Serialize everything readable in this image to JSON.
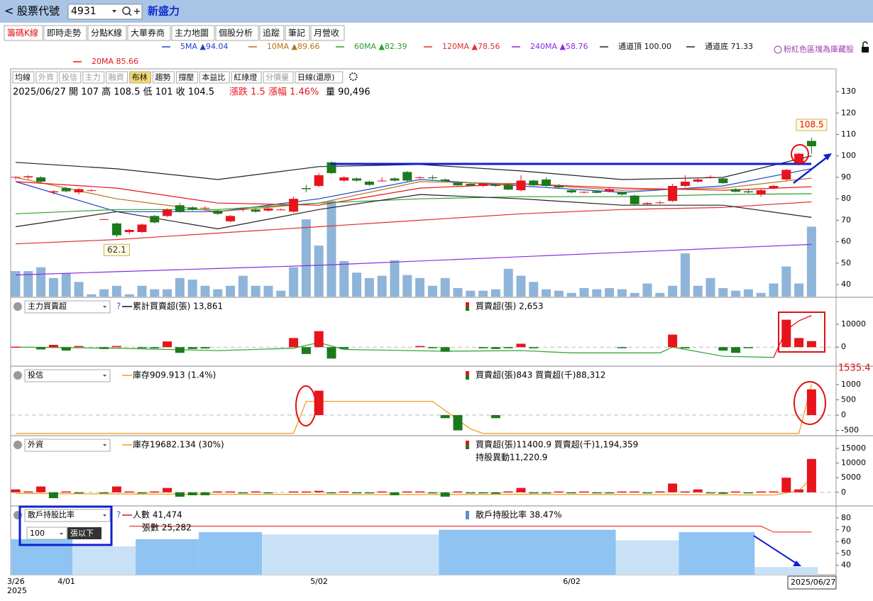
{
  "header": {
    "back": "<",
    "label": "股票代號",
    "code": "4931",
    "name": "新盛力"
  },
  "tabs": [
    "籌碼K線",
    "即時走勢",
    "分點K線",
    "大單券商",
    "主力地圖",
    "個股分析",
    "追蹤",
    "筆記",
    "月營收"
  ],
  "notice": "粉紅色區塊為庫藏股",
  "toolbar": [
    "均線",
    "外資",
    "投信",
    "主力",
    "融資",
    "布林",
    "趨勢",
    "撐壓",
    "本益比",
    "紅綠燈",
    "分價量",
    "日線(還原)"
  ],
  "info": {
    "ohlc": "2025/06/27 開 107 高 108.5 低 101 收 104.5",
    "change": "漲跌 1.5  漲幅 1.46%",
    "volume": "量 90,496"
  },
  "x_labels": [
    {
      "index": 0,
      "label": "3/26"
    },
    {
      "index": 4,
      "label": "4/01"
    },
    {
      "index": 24,
      "label": "5/02"
    },
    {
      "index": 44,
      "label": "6/02"
    }
  ],
  "year_label": "2025",
  "last_date": "2025/06/27",
  "chart_data": [
    {
      "type": "candlestick",
      "ylim": [
        34.4,
        133
      ],
      "yticks": [
        40,
        50,
        60,
        70,
        80,
        90,
        100,
        110,
        120,
        130
      ],
      "open": [
        90,
        90,
        90,
        83,
        85,
        83,
        84,
        70.5,
        68.5,
        64.5,
        64.5,
        72,
        72,
        77,
        76,
        75.5,
        74.5,
        69.5,
        75,
        75,
        74.5,
        75,
        74,
        85,
        86,
        97,
        88.5,
        89.5,
        88,
        88.5,
        89.5,
        92.5,
        90,
        90,
        89,
        87.5,
        87,
        86,
        86.5,
        86.5,
        84,
        88.5,
        89,
        86,
        84,
        83,
        83.5,
        83.5,
        83,
        81.5,
        77.5,
        78.2,
        79,
        86,
        88,
        90,
        89.5,
        84.5,
        83.5,
        82,
        85,
        89,
        96,
        107
      ],
      "high": [
        90.5,
        91,
        90.5,
        84,
        85.5,
        85,
        84.5,
        70.6,
        69,
        66,
        68.5,
        72.5,
        75.5,
        78,
        76.5,
        76.5,
        75,
        72.5,
        75.5,
        75.5,
        76,
        75.5,
        81,
        86.5,
        92,
        97.5,
        90.5,
        90,
        88.5,
        90,
        90,
        93,
        90.5,
        91,
        89.5,
        88,
        87.5,
        87.5,
        87,
        87,
        91,
        89,
        90,
        87,
        84.5,
        83.5,
        84,
        85,
        83.5,
        82,
        78.5,
        79,
        87,
        91,
        89.5,
        91,
        90,
        85,
        84.5,
        84.5,
        86.5,
        94,
        101.5,
        108.5
      ],
      "low": [
        89,
        89,
        87.5,
        82,
        83,
        82,
        83.5,
        70.4,
        62.1,
        63.5,
        64,
        68.5,
        71.5,
        73.5,
        74.5,
        75,
        72.5,
        69,
        74,
        73.5,
        74,
        74.5,
        73.5,
        83,
        85.5,
        91.5,
        88,
        88,
        86,
        88,
        88,
        88,
        89.5,
        89,
        88,
        86,
        86,
        85.5,
        85.5,
        84,
        83.5,
        86,
        85.5,
        85,
        82.5,
        82.5,
        82.5,
        83,
        81.5,
        77,
        77,
        77.5,
        78.5,
        85.5,
        87.5,
        89.5,
        87,
        83,
        82.5,
        81,
        84.5,
        88.5,
        95.5,
        101
      ],
      "close": [
        90.2,
        90.5,
        88,
        83.5,
        83.5,
        84.5,
        84,
        70.5,
        63,
        65.5,
        68,
        69,
        75,
        74,
        75,
        75.8,
        73,
        72,
        75.3,
        74,
        75.5,
        75,
        80,
        84.5,
        91,
        92,
        90,
        88.5,
        86.5,
        88.5,
        88.5,
        88.5,
        90,
        89.6,
        88.2,
        86.3,
        86.2,
        87,
        86,
        84.3,
        88.5,
        86.3,
        86,
        85.3,
        83,
        83.2,
        82.8,
        84.5,
        82,
        77.5,
        78,
        78.3,
        86,
        88,
        89,
        90.2,
        87.3,
        83.3,
        83,
        84,
        86,
        93.5,
        101,
        104.5
      ],
      "up_color": "#e8141b",
      "down_color": "#1b7a1b",
      "volume": [
        33000,
        33000,
        38000,
        24000,
        30000,
        19000,
        3000,
        9500,
        14000,
        3000,
        14000,
        9500,
        9500,
        24000,
        22000,
        14000,
        9500,
        14000,
        27000,
        14000,
        14000,
        7600,
        38000,
        100000,
        66000,
        124000,
        46000,
        31000,
        24000,
        27000,
        47000,
        28000,
        24000,
        14000,
        24000,
        11000,
        7600,
        7600,
        9500,
        36000,
        27000,
        19000,
        9500,
        7600,
        4800,
        11000,
        9500,
        11000,
        9500,
        4800,
        17000,
        4800,
        14000,
        56000,
        14000,
        24000,
        11000,
        7600,
        9500,
        4800,
        17000,
        39000,
        17000,
        90496
      ],
      "volume_color": "#8fb4d9",
      "lines_x": [
        0,
        8,
        16,
        24,
        32,
        40,
        48,
        56,
        63
      ],
      "lines": [
        {
          "name": "5MA",
          "label": "▲94.04",
          "color": "#2244cc",
          "values": [
            88,
            74,
            74,
            80,
            89,
            86,
            83,
            86,
            94.04
          ]
        },
        {
          "name": "10MA",
          "label": "▲89.66",
          "color": "#b8741a",
          "values": [
            90,
            80,
            74,
            78,
            88,
            87,
            84,
            85,
            89.66
          ]
        },
        {
          "name": "20MA",
          "label": "85.66",
          "color": "#e8141b",
          "values": [
            88,
            85,
            78,
            77,
            85,
            87,
            85,
            84,
            85.66
          ]
        },
        {
          "name": "60MA",
          "label": "▲82.39",
          "color": "#2aa02a",
          "values": [
            73,
            75,
            75,
            78,
            80,
            81,
            81,
            82,
            82.39
          ]
        },
        {
          "name": "120MA",
          "label": "▲78.56",
          "color": "#e03030",
          "values": [
            59,
            61,
            64,
            67,
            70,
            73,
            75,
            76,
            78.56
          ]
        },
        {
          "name": "240MA",
          "label": "▲58.76",
          "color": "#8a2be2",
          "values": [
            44.5,
            46,
            47.5,
            49,
            51,
            53,
            55,
            57,
            58.76
          ]
        },
        {
          "name": "通道頂",
          "label": "100.00",
          "color": "#222222",
          "values": [
            97,
            94,
            89,
            95,
            96,
            93,
            89,
            90,
            100
          ]
        },
        {
          "name": "通道底",
          "label": "71.33",
          "color": "#222222",
          "values": [
            67,
            74,
            66,
            75,
            82,
            80,
            77,
            77,
            71.33
          ]
        }
      ],
      "annotations": [
        {
          "index": 8,
          "field": "low",
          "text": "62.1"
        },
        {
          "index": 63,
          "field": "high",
          "text": "108.5"
        }
      ]
    },
    {
      "type": "bar",
      "selector": "主力買賣超",
      "help": "?",
      "left_text": "累計買賣超(張) 13,861",
      "right_text": "買賣超(張) 2,653",
      "ylim": [
        -8000,
        21500
      ],
      "yticks": [
        0,
        10000
      ],
      "values": [
        200,
        0,
        -1000,
        1000,
        -1500,
        500,
        0,
        -800,
        500,
        0,
        -300,
        -500,
        2500,
        -2500,
        -800,
        -600,
        0,
        0,
        0,
        0,
        0,
        0,
        4000,
        -3000,
        7000,
        -5000,
        -800,
        0,
        0,
        0,
        0,
        0,
        500,
        -300,
        -2000,
        0,
        0,
        -500,
        -800,
        -500,
        1500,
        -500,
        0,
        0,
        0,
        0,
        0,
        0,
        -300,
        0,
        0,
        0,
        5500,
        -500,
        0,
        0,
        -1500,
        -2500,
        -300,
        0,
        0,
        12000,
        4000,
        2653
      ],
      "lines": [
        {
          "color": "#3aa83a",
          "x": [
            0,
            8,
            16,
            22,
            24,
            26,
            34,
            40,
            44,
            51,
            52,
            56,
            60
          ],
          "values": [
            0,
            -500,
            -1500,
            -500,
            2000,
            -1000,
            -1800,
            -1500,
            -2500,
            -2500,
            0,
            -4000,
            -4500
          ]
        },
        {
          "color": "#e8141b",
          "x": [
            60,
            61,
            62,
            63
          ],
          "values": [
            -4500,
            7500,
            11500,
            13861
          ]
        }
      ]
    },
    {
      "type": "bar",
      "selector": "投信",
      "left_text": "庫存909.913 (1.4%)",
      "right_text": "買賣超(張)843 買賣超(千)88,312",
      "ylim": [
        -650,
        1580
      ],
      "yticks": [
        -500,
        0,
        500,
        1000
      ],
      "max_value": 1535.4,
      "values": [
        0,
        0,
        0,
        0,
        0,
        0,
        0,
        0,
        0,
        0,
        0,
        0,
        0,
        0,
        0,
        0,
        0,
        0,
        0,
        0,
        0,
        0,
        0,
        0,
        800,
        0,
        0,
        0,
        0,
        0,
        0,
        0,
        0,
        0,
        -100,
        -500,
        0,
        0,
        -100,
        0,
        0,
        0,
        0,
        0,
        0,
        0,
        0,
        0,
        0,
        0,
        0,
        0,
        0,
        0,
        0,
        0,
        0,
        0,
        0,
        0,
        0,
        0,
        0,
        843
      ],
      "lines": [
        {
          "color": "#f0a020",
          "x": [
            0,
            22,
            23,
            33,
            36,
            37,
            62,
            63
          ],
          "values": [
            -600,
            -600,
            450,
            450,
            -450,
            -600,
            -600,
            1000
          ]
        }
      ]
    },
    {
      "type": "bar",
      "selector": "外資",
      "left_text": "庫存19682.134 (30%)",
      "right_text": "買賣超(張)11400.9 買賣超(千)1,194,359",
      "right_text2": "持股異動11,220.9",
      "ylim": [
        -4400,
        19100
      ],
      "yticks": [
        0,
        5000,
        10000,
        15000
      ],
      "values": [
        1000,
        300,
        2000,
        -2000,
        300,
        -300,
        0,
        -300,
        2000,
        300,
        -300,
        300,
        1500,
        -1500,
        -1000,
        -1000,
        300,
        300,
        -300,
        300,
        -300,
        0,
        300,
        300,
        500,
        -300,
        300,
        -300,
        -300,
        300,
        -1000,
        300,
        300,
        -300,
        -1500,
        300,
        -300,
        -300,
        -500,
        300,
        1500,
        -300,
        -300,
        300,
        -300,
        300,
        -300,
        -300,
        300,
        300,
        -300,
        300,
        3000,
        300,
        1000,
        -300,
        -500,
        300,
        -300,
        300,
        300,
        5000,
        1000,
        11400.9
      ],
      "lines": [
        {
          "color": "#f0a020",
          "x": [
            0,
            10,
            20,
            30,
            40,
            50,
            60,
            62,
            63
          ],
          "values": [
            -400,
            -600,
            -700,
            -800,
            -700,
            -800,
            -900,
            500,
            5000
          ]
        }
      ]
    },
    {
      "type": "area",
      "selector": "散戶持股比率",
      "threshold": "100",
      "threshold_unit": "張以下",
      "help": "?",
      "left_text": "人數 41,474",
      "left_text2": "張數 25,282",
      "right_text": "散戶持股比率 38.47%",
      "ylim": [
        32,
        89.5
      ],
      "yticks": [
        40,
        50,
        60,
        70,
        80
      ],
      "x": [
        0,
        5,
        10,
        15,
        20,
        34,
        48,
        53,
        59
      ],
      "values": [
        62,
        56,
        62,
        68,
        66,
        70,
        61,
        68,
        38.47
      ],
      "colors": [
        "#8ec3f2",
        "#c9e1f7",
        "#8ec3f2",
        "#8ec3f2",
        "#c9e1f7",
        "#8ec3f2",
        "#c9e1f7",
        "#8ec3f2",
        "#c9e1f7"
      ],
      "lines": [
        {
          "color": "#e8141b",
          "x": [
            9,
            59,
            60,
            63
          ],
          "values": [
            73,
            73,
            68,
            68
          ]
        }
      ]
    }
  ]
}
